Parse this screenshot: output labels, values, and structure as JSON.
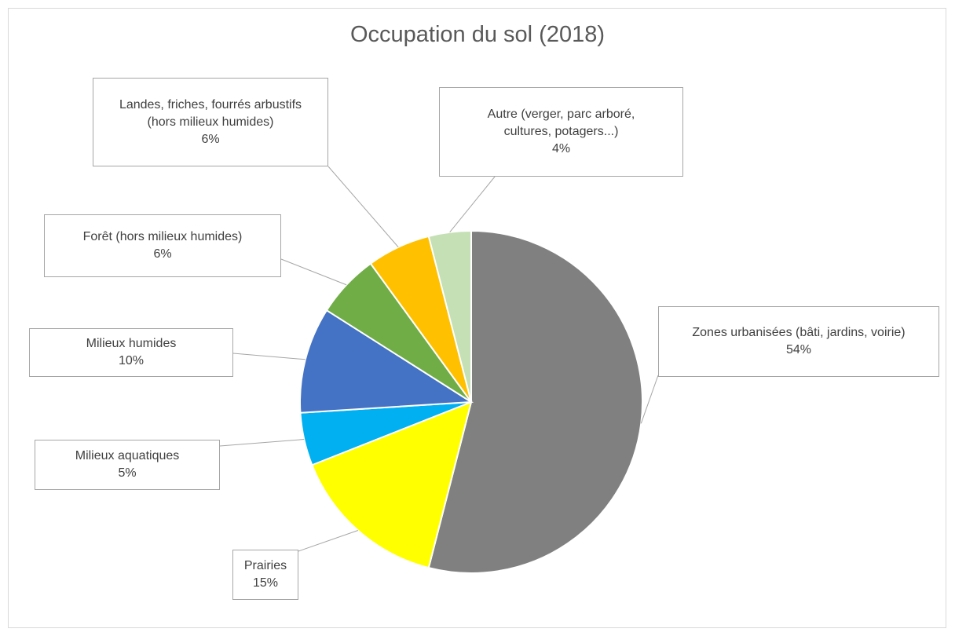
{
  "chart_data": {
    "type": "pie",
    "title": "Occupation du sol (2018)",
    "start_angle_deg": 0,
    "direction": "clockwise",
    "slices": [
      {
        "name": "Zones urbanisées (bâti, jardins, voirie)",
        "value": 54,
        "label": "54%",
        "color": "#808080"
      },
      {
        "name": "Prairies",
        "value": 15,
        "label": "15%",
        "color": "#ffff00"
      },
      {
        "name": "Milieux aquatiques",
        "value": 5,
        "label": "5%",
        "color": "#00b0f0"
      },
      {
        "name": "Milieux humides",
        "value": 10,
        "label": "10%",
        "color": "#4472c4"
      },
      {
        "name": "Forêt (hors milieux humides)",
        "value": 6,
        "label": "6%",
        "color": "#70ad47"
      },
      {
        "name": "Landes, friches, fourrés arbustifs (hors milieux humides)",
        "value": 6,
        "label": "6%",
        "color": "#ffc000"
      },
      {
        "name": "Autre (verger, parc arboré, cultures, potagers...)",
        "value": 4,
        "label": "4%",
        "color": "#c5e0b4"
      }
    ],
    "label_lines": {
      "zones": [
        "Zones urbanisées (bâti, jardins, voirie)"
      ],
      "prairies": [
        "Prairies"
      ],
      "aquatiques": [
        "Milieux aquatiques"
      ],
      "humides": [
        "Milieux humides"
      ],
      "foret": [
        "Forêt (hors milieux humides)"
      ],
      "landes": [
        "Landes, friches, fourrés arbustifs",
        "(hors milieux humides)"
      ],
      "autre": [
        "Autre (verger, parc arboré,",
        "cultures, potagers...)"
      ]
    },
    "legend": "none",
    "data_labels": "outside-with-leader-lines"
  }
}
